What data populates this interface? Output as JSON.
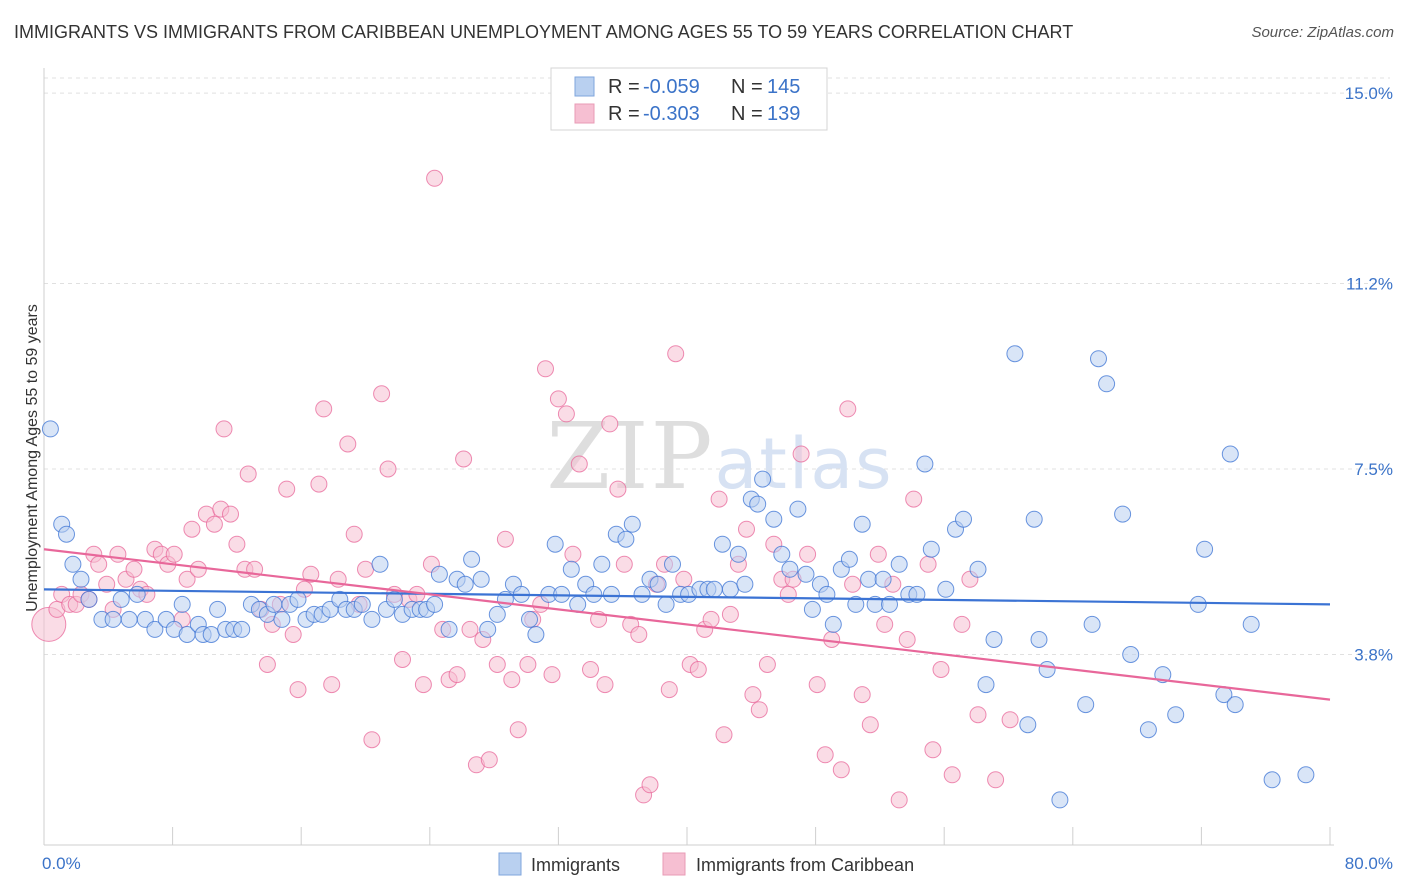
{
  "title": "IMMIGRANTS VS IMMIGRANTS FROM CARIBBEAN UNEMPLOYMENT AMONG AGES 55 TO 59 YEARS CORRELATION CHART",
  "source": "Source: ZipAtlas.com",
  "watermark": "ZIPatlas",
  "colors": {
    "blue": "#3b73d4",
    "blue_fill": "#b9d0f0",
    "pink": "#e8679a",
    "pink_fill": "#f6bfd2",
    "tick_text": "#3b73c8"
  },
  "legend": {
    "rows": [
      {
        "r_label": "R =",
        "r_value": "-0.059",
        "n_label": "N =",
        "n_value": "145"
      },
      {
        "r_label": "R =",
        "r_value": "-0.303",
        "n_label": "N =",
        "n_value": "139"
      }
    ]
  },
  "bottom_legend": [
    "Immigrants",
    "Immigrants from Caribbean"
  ],
  "chart_data": {
    "type": "scatter",
    "title": "IMMIGRANTS VS IMMIGRANTS FROM CARIBBEAN UNEMPLOYMENT AMONG AGES 55 TO 59 YEARS CORRELATION CHART",
    "xlabel": "",
    "ylabel": "Unemployment Among Ages 55 to 59 years",
    "xlim": [
      0,
      80
    ],
    "ylim": [
      0,
      15.5
    ],
    "x_tick_labels": [
      "0.0%",
      "80.0%"
    ],
    "y_ticks": [
      3.8,
      7.5,
      11.2,
      15.0
    ],
    "y_tick_labels": [
      "3.8%",
      "7.5%",
      "11.2%",
      "15.0%"
    ],
    "grid": "horizontal dashed",
    "legend_position": "top-center",
    "series": [
      {
        "name": "Immigrants",
        "color": "#3b73d4",
        "trend": {
          "x": [
            0,
            80
          ],
          "y": [
            5.1,
            4.8
          ]
        },
        "points": [
          [
            0.4,
            8.3
          ],
          [
            1.1,
            6.4
          ],
          [
            1.4,
            6.2
          ],
          [
            1.8,
            5.6
          ],
          [
            2.3,
            5.3
          ],
          [
            2.8,
            4.9
          ],
          [
            3.6,
            4.5
          ],
          [
            4.3,
            4.5
          ],
          [
            4.8,
            4.9
          ],
          [
            5.3,
            4.5
          ],
          [
            5.8,
            5.0
          ],
          [
            6.3,
            4.5
          ],
          [
            6.9,
            4.3
          ],
          [
            7.6,
            4.5
          ],
          [
            8.1,
            4.3
          ],
          [
            8.6,
            4.8
          ],
          [
            8.9,
            4.2
          ],
          [
            9.6,
            4.4
          ],
          [
            9.9,
            4.2
          ],
          [
            10.4,
            4.2
          ],
          [
            10.8,
            4.7
          ],
          [
            11.3,
            4.3
          ],
          [
            11.8,
            4.3
          ],
          [
            12.3,
            4.3
          ],
          [
            12.9,
            4.8
          ],
          [
            13.4,
            4.7
          ],
          [
            13.9,
            4.6
          ],
          [
            14.3,
            4.8
          ],
          [
            14.8,
            4.5
          ],
          [
            15.3,
            4.8
          ],
          [
            15.8,
            4.9
          ],
          [
            16.3,
            4.5
          ],
          [
            16.8,
            4.6
          ],
          [
            17.3,
            4.6
          ],
          [
            17.8,
            4.7
          ],
          [
            18.4,
            4.9
          ],
          [
            18.8,
            4.7
          ],
          [
            19.3,
            4.7
          ],
          [
            19.8,
            4.8
          ],
          [
            20.4,
            4.5
          ],
          [
            20.9,
            5.6
          ],
          [
            21.3,
            4.7
          ],
          [
            21.8,
            4.9
          ],
          [
            22.3,
            4.6
          ],
          [
            22.9,
            4.7
          ],
          [
            23.4,
            4.7
          ],
          [
            23.8,
            4.7
          ],
          [
            24.3,
            4.8
          ],
          [
            24.6,
            5.4
          ],
          [
            25.2,
            4.3
          ],
          [
            25.7,
            5.3
          ],
          [
            26.2,
            5.2
          ],
          [
            26.6,
            5.7
          ],
          [
            27.2,
            5.3
          ],
          [
            27.6,
            4.3
          ],
          [
            28.2,
            4.6
          ],
          [
            28.7,
            4.9
          ],
          [
            29.2,
            5.2
          ],
          [
            29.7,
            5.0
          ],
          [
            30.2,
            4.5
          ],
          [
            30.6,
            4.2
          ],
          [
            31.4,
            5.0
          ],
          [
            31.8,
            6.0
          ],
          [
            32.2,
            5.0
          ],
          [
            32.8,
            5.5
          ],
          [
            33.2,
            4.8
          ],
          [
            33.7,
            5.2
          ],
          [
            34.2,
            5.0
          ],
          [
            34.7,
            5.6
          ],
          [
            35.3,
            5.0
          ],
          [
            35.6,
            6.2
          ],
          [
            36.2,
            6.1
          ],
          [
            36.6,
            6.4
          ],
          [
            37.2,
            5.0
          ],
          [
            37.7,
            5.3
          ],
          [
            38.2,
            5.2
          ],
          [
            38.7,
            4.8
          ],
          [
            39.1,
            5.6
          ],
          [
            39.6,
            5.0
          ],
          [
            40.1,
            5.0
          ],
          [
            40.8,
            5.1
          ],
          [
            41.3,
            5.1
          ],
          [
            41.7,
            5.1
          ],
          [
            42.2,
            6.0
          ],
          [
            42.7,
            5.1
          ],
          [
            43.2,
            5.8
          ],
          [
            43.6,
            5.2
          ],
          [
            44.0,
            6.9
          ],
          [
            44.4,
            6.8
          ],
          [
            44.7,
            7.3
          ],
          [
            45.4,
            6.5
          ],
          [
            45.9,
            5.8
          ],
          [
            46.4,
            5.5
          ],
          [
            46.9,
            6.7
          ],
          [
            47.4,
            5.4
          ],
          [
            47.8,
            4.7
          ],
          [
            48.3,
            5.2
          ],
          [
            48.7,
            5.0
          ],
          [
            49.1,
            4.4
          ],
          [
            49.6,
            5.5
          ],
          [
            50.1,
            5.7
          ],
          [
            50.5,
            4.8
          ],
          [
            50.9,
            6.4
          ],
          [
            51.3,
            5.3
          ],
          [
            51.7,
            4.8
          ],
          [
            52.2,
            5.3
          ],
          [
            52.6,
            4.8
          ],
          [
            53.2,
            5.6
          ],
          [
            53.8,
            5.0
          ],
          [
            54.3,
            5.0
          ],
          [
            54.8,
            7.6
          ],
          [
            55.2,
            5.9
          ],
          [
            56.1,
            5.1
          ],
          [
            56.7,
            6.3
          ],
          [
            57.2,
            6.5
          ],
          [
            58.1,
            5.5
          ],
          [
            58.6,
            3.2
          ],
          [
            59.1,
            4.1
          ],
          [
            60.4,
            9.8
          ],
          [
            61.2,
            2.4
          ],
          [
            61.6,
            6.5
          ],
          [
            61.9,
            4.1
          ],
          [
            62.4,
            3.5
          ],
          [
            63.2,
            0.9
          ],
          [
            64.8,
            2.8
          ],
          [
            65.2,
            4.4
          ],
          [
            65.6,
            9.7
          ],
          [
            66.1,
            9.2
          ],
          [
            67.1,
            6.6
          ],
          [
            67.6,
            3.8
          ],
          [
            68.7,
            2.3
          ],
          [
            69.6,
            3.4
          ],
          [
            70.4,
            2.6
          ],
          [
            71.8,
            4.8
          ],
          [
            72.2,
            5.9
          ],
          [
            73.4,
            3.0
          ],
          [
            73.8,
            7.8
          ],
          [
            74.1,
            2.8
          ],
          [
            75.1,
            4.4
          ],
          [
            76.4,
            1.3
          ],
          [
            78.5,
            1.4
          ]
        ]
      },
      {
        "name": "Immigrants from Caribbean",
        "color": "#e8679a",
        "trend": {
          "x": [
            0,
            80
          ],
          "y": [
            5.9,
            2.9
          ]
        },
        "points": [
          [
            0.3,
            4.4
          ],
          [
            0.8,
            4.7
          ],
          [
            1.1,
            5.0
          ],
          [
            1.6,
            4.8
          ],
          [
            2.0,
            4.8
          ],
          [
            2.3,
            5.0
          ],
          [
            2.8,
            4.9
          ],
          [
            3.1,
            5.8
          ],
          [
            3.4,
            5.6
          ],
          [
            3.9,
            5.2
          ],
          [
            4.3,
            4.7
          ],
          [
            4.6,
            5.8
          ],
          [
            5.1,
            5.3
          ],
          [
            5.6,
            5.5
          ],
          [
            6.0,
            5.1
          ],
          [
            6.4,
            5.0
          ],
          [
            6.9,
            5.9
          ],
          [
            7.3,
            5.8
          ],
          [
            7.7,
            5.6
          ],
          [
            8.1,
            5.8
          ],
          [
            8.6,
            4.5
          ],
          [
            8.9,
            5.3
          ],
          [
            9.2,
            6.3
          ],
          [
            9.6,
            5.5
          ],
          [
            10.1,
            6.6
          ],
          [
            10.6,
            6.4
          ],
          [
            11.0,
            6.7
          ],
          [
            11.2,
            8.3
          ],
          [
            11.6,
            6.6
          ],
          [
            12.0,
            6.0
          ],
          [
            12.5,
            5.5
          ],
          [
            12.7,
            7.4
          ],
          [
            13.1,
            5.5
          ],
          [
            13.5,
            4.7
          ],
          [
            13.9,
            3.6
          ],
          [
            14.2,
            4.4
          ],
          [
            14.7,
            4.8
          ],
          [
            15.1,
            7.1
          ],
          [
            15.5,
            4.2
          ],
          [
            15.8,
            3.1
          ],
          [
            16.2,
            5.1
          ],
          [
            16.6,
            5.4
          ],
          [
            17.1,
            7.2
          ],
          [
            17.4,
            8.7
          ],
          [
            17.9,
            3.2
          ],
          [
            18.3,
            5.3
          ],
          [
            18.9,
            8.0
          ],
          [
            19.3,
            6.2
          ],
          [
            19.6,
            4.8
          ],
          [
            20.0,
            5.5
          ],
          [
            20.4,
            2.1
          ],
          [
            21.0,
            9.0
          ],
          [
            21.4,
            7.5
          ],
          [
            21.8,
            5.0
          ],
          [
            22.3,
            3.7
          ],
          [
            22.7,
            4.9
          ],
          [
            23.2,
            5.0
          ],
          [
            23.6,
            3.2
          ],
          [
            24.1,
            5.6
          ],
          [
            24.3,
            13.3
          ],
          [
            24.8,
            4.3
          ],
          [
            25.2,
            3.3
          ],
          [
            25.7,
            3.4
          ],
          [
            26.1,
            7.7
          ],
          [
            26.5,
            4.3
          ],
          [
            26.9,
            1.6
          ],
          [
            27.3,
            4.1
          ],
          [
            27.7,
            1.7
          ],
          [
            28.2,
            3.6
          ],
          [
            28.7,
            6.1
          ],
          [
            29.1,
            3.3
          ],
          [
            29.5,
            2.3
          ],
          [
            30.1,
            3.6
          ],
          [
            30.4,
            4.5
          ],
          [
            30.9,
            4.8
          ],
          [
            31.2,
            9.5
          ],
          [
            31.6,
            3.4
          ],
          [
            32.0,
            8.9
          ],
          [
            32.5,
            8.6
          ],
          [
            32.9,
            5.8
          ],
          [
            33.3,
            7.6
          ],
          [
            34.0,
            3.5
          ],
          [
            34.5,
            4.5
          ],
          [
            34.9,
            3.2
          ],
          [
            35.2,
            8.4
          ],
          [
            35.7,
            7.1
          ],
          [
            36.1,
            5.6
          ],
          [
            36.5,
            4.4
          ],
          [
            37.0,
            4.2
          ],
          [
            37.3,
            1.0
          ],
          [
            37.7,
            1.2
          ],
          [
            38.1,
            5.2
          ],
          [
            38.6,
            5.6
          ],
          [
            38.9,
            3.1
          ],
          [
            39.3,
            9.8
          ],
          [
            39.8,
            5.3
          ],
          [
            40.2,
            3.6
          ],
          [
            40.7,
            3.5
          ],
          [
            41.1,
            4.3
          ],
          [
            41.5,
            4.5
          ],
          [
            42.0,
            6.9
          ],
          [
            42.3,
            2.2
          ],
          [
            42.7,
            4.6
          ],
          [
            43.2,
            5.6
          ],
          [
            43.7,
            6.3
          ],
          [
            44.1,
            3.0
          ],
          [
            44.5,
            2.7
          ],
          [
            45.0,
            3.6
          ],
          [
            45.4,
            6.0
          ],
          [
            45.9,
            5.3
          ],
          [
            46.3,
            5.0
          ],
          [
            46.6,
            5.3
          ],
          [
            47.1,
            7.8
          ],
          [
            47.5,
            5.8
          ],
          [
            48.1,
            3.2
          ],
          [
            48.6,
            1.8
          ],
          [
            49.0,
            4.1
          ],
          [
            49.6,
            1.5
          ],
          [
            50.0,
            8.7
          ],
          [
            50.3,
            5.2
          ],
          [
            50.9,
            3.0
          ],
          [
            51.4,
            2.4
          ],
          [
            51.9,
            5.8
          ],
          [
            52.3,
            4.4
          ],
          [
            52.8,
            5.2
          ],
          [
            53.2,
            0.9
          ],
          [
            53.7,
            4.1
          ],
          [
            54.1,
            6.9
          ],
          [
            55.0,
            5.6
          ],
          [
            55.3,
            1.9
          ],
          [
            55.8,
            3.5
          ],
          [
            56.5,
            1.4
          ],
          [
            57.1,
            4.4
          ],
          [
            57.6,
            5.3
          ],
          [
            58.1,
            2.6
          ],
          [
            59.2,
            1.3
          ],
          [
            60.1,
            2.5
          ]
        ]
      }
    ]
  }
}
